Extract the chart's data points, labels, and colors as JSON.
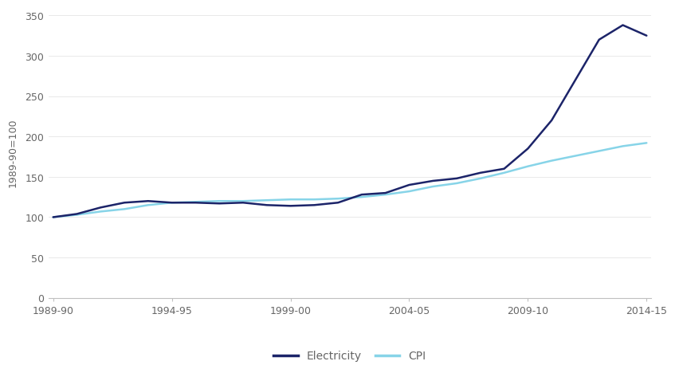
{
  "electricity_x": [
    0,
    1,
    2,
    3,
    4,
    5,
    6,
    7,
    8,
    9,
    10,
    11,
    12,
    13,
    14,
    15,
    16,
    17,
    18,
    19,
    20,
    21,
    22,
    23,
    24,
    25
  ],
  "electricity_y": [
    100,
    104,
    112,
    118,
    120,
    118,
    118,
    117,
    118,
    115,
    114,
    115,
    118,
    128,
    130,
    140,
    145,
    148,
    155,
    160,
    185,
    220,
    270,
    320,
    338,
    325
  ],
  "cpi_x": [
    0,
    1,
    2,
    3,
    4,
    5,
    6,
    7,
    8,
    9,
    10,
    11,
    12,
    13,
    14,
    15,
    16,
    17,
    18,
    19,
    20,
    21,
    22,
    23,
    24,
    25
  ],
  "cpi_y": [
    100,
    103,
    107,
    110,
    115,
    118,
    119,
    120,
    120,
    121,
    122,
    122,
    123,
    125,
    128,
    132,
    138,
    142,
    148,
    155,
    163,
    170,
    176,
    182,
    188,
    192
  ],
  "x_tick_positions": [
    0,
    5,
    10,
    15,
    20,
    25
  ],
  "x_tick_labels": [
    "1989-90",
    "1994-95",
    "1999-00",
    "2004-05",
    "2009-10",
    "2014-15"
  ],
  "ylabel": "1989-90=100",
  "ylim": [
    0,
    360
  ],
  "yticks": [
    0,
    50,
    100,
    150,
    200,
    250,
    300,
    350
  ],
  "electricity_color": "#1c2469",
  "cpi_color": "#87d4e8",
  "line_width": 1.8,
  "legend_labels": [
    "Electricity",
    "CPI"
  ],
  "background_color": "#ffffff",
  "tick_color": "#aaaaaa",
  "font_color": "#666666",
  "font_size": 9
}
